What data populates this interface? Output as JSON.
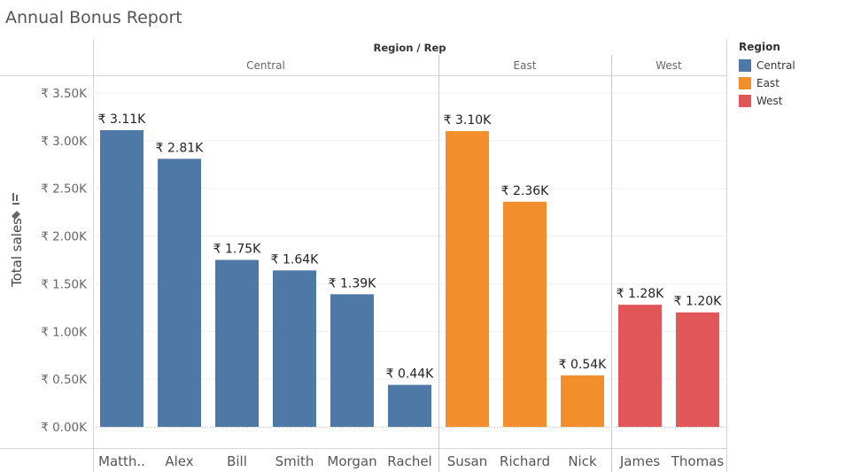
{
  "title": "Annual Bonus Report",
  "chart_data": {
    "type": "bar",
    "header_title": "Region / Rep",
    "ylabel": "Total sales",
    "ylim": [
      0,
      3.5
    ],
    "yticks": [
      0,
      0.5,
      1.0,
      1.5,
      2.0,
      2.5,
      3.0,
      3.5
    ],
    "ytick_labels": [
      "₹ 0.00K",
      "₹ 0.50K",
      "₹ 1.00K",
      "₹ 1.50K",
      "₹ 2.00K",
      "₹ 2.50K",
      "₹ 3.00K",
      "₹ 3.50K"
    ],
    "groups": [
      {
        "name": "Central",
        "color": "#4e79a7",
        "bars": [
          {
            "rep": "Matth..",
            "value": 3.11,
            "label": "₹ 3.11K"
          },
          {
            "rep": "Alex",
            "value": 2.81,
            "label": "₹ 2.81K"
          },
          {
            "rep": "Bill",
            "value": 1.75,
            "label": "₹ 1.75K"
          },
          {
            "rep": "Smith",
            "value": 1.64,
            "label": "₹ 1.64K"
          },
          {
            "rep": "Morgan",
            "value": 1.39,
            "label": "₹ 1.39K"
          },
          {
            "rep": "Rachel",
            "value": 0.44,
            "label": "₹ 0.44K"
          }
        ]
      },
      {
        "name": "East",
        "color": "#f28e2b",
        "bars": [
          {
            "rep": "Susan",
            "value": 3.1,
            "label": "₹ 3.10K"
          },
          {
            "rep": "Richard",
            "value": 2.36,
            "label": "₹ 2.36K"
          },
          {
            "rep": "Nick",
            "value": 0.54,
            "label": "₹ 0.54K"
          }
        ]
      },
      {
        "name": "West",
        "color": "#e15759",
        "bars": [
          {
            "rep": "James",
            "value": 1.28,
            "label": "₹ 1.28K"
          },
          {
            "rep": "Thomas",
            "value": 1.2,
            "label": "₹ 1.20K"
          }
        ]
      }
    ],
    "legend": {
      "title": "Region",
      "position": "right",
      "items": [
        {
          "label": "Central",
          "color": "#4e79a7"
        },
        {
          "label": "East",
          "color": "#f28e2b"
        },
        {
          "label": "West",
          "color": "#e15759"
        }
      ]
    },
    "grid": true
  }
}
